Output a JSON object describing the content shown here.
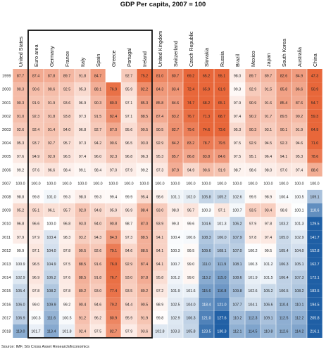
{
  "title": "GDP Per capita, 2007 = 100",
  "source": "Source: IMF, SG Cross Asset Research/Economics",
  "chart_data": {
    "type": "heatmap",
    "title": "GDP Per capita, 2007 = 100",
    "baseline_year": "2007",
    "highlighted_group": [
      "Euro area",
      "Germany",
      "France",
      "Italy",
      "Spain",
      "Greece",
      "Portugal",
      "Ireland"
    ],
    "color_scale": {
      "low": "#e8673a",
      "mid": "#ffffff",
      "high": "#1f5fa5",
      "mid_value": 100
    },
    "columns": [
      "United States",
      "Euro area",
      "Germany",
      "France",
      "Italy",
      "Spain",
      "Greece",
      "Portugal",
      "Ireland",
      "United Kingdom",
      "Switzerland",
      "Czech Republic",
      "Slovakia",
      "Russia",
      "Brazil",
      "Mexico",
      "Japan",
      "South Korea",
      "Australia",
      "China"
    ],
    "rows": [
      {
        "year": "1999",
        "values": [
          "87.7",
          "87.4",
          "87.8",
          "89.7",
          "91.8",
          "84.7",
          "",
          "92.7",
          "75.2",
          "81.0",
          "80.7",
          "69.2",
          "65.2",
          "55.1",
          "98.0",
          "89.7",
          "89.7",
          "82.6",
          "84.9",
          "47.3"
        ]
      },
      {
        "year": "2000",
        "values": [
          "90.3",
          "90.6",
          "90.6",
          "92.5",
          "95.3",
          "88.1",
          "76.9",
          "95.9",
          "82.2",
          "84.3",
          "83.4",
          "72.4",
          "65.9",
          "61.9",
          "99.3",
          "92.9",
          "91.5",
          "85.8",
          "86.6",
          "50.9"
        ]
      },
      {
        "year": "2001",
        "values": [
          "90.3",
          "91.9",
          "91.9",
          "93.6",
          "96.9",
          "90.3",
          "80.0",
          "97.1",
          "85.3",
          "85.8",
          "84.6",
          "74.7",
          "68.2",
          "65.1",
          "97.9",
          "90.9",
          "91.6",
          "85.4",
          "87.6",
          "54.7"
        ]
      },
      {
        "year": "2002",
        "values": [
          "91.0",
          "92.3",
          "91.8",
          "93.8",
          "97.3",
          "91.5",
          "82.4",
          "97.1",
          "88.5",
          "87.4",
          "83.2",
          "76.7",
          "71.3",
          "68.7",
          "97.4",
          "90.2",
          "91.7",
          "89.5",
          "90.2",
          "59.3"
        ]
      },
      {
        "year": "2003",
        "values": [
          "92.6",
          "92.4",
          "91.4",
          "94.0",
          "96.8",
          "92.7",
          "87.0",
          "95.6",
          "90.5",
          "90.5",
          "82.7",
          "79.6",
          "74.6",
          "73.6",
          "95.3",
          "90.3",
          "93.1",
          "90.1",
          "91.9",
          "64.9"
        ]
      },
      {
        "year": "2004",
        "values": [
          "95.3",
          "93.7",
          "92.7",
          "95.7",
          "97.3",
          "94.2",
          "90.6",
          "96.5",
          "93.0",
          "92.9",
          "84.2",
          "83.2",
          "78.7",
          "79.5",
          "97.5",
          "92.9",
          "94.5",
          "92.3",
          "94.6",
          "71.0"
        ]
      },
      {
        "year": "2005",
        "values": [
          "97.6",
          "94.9",
          "92.9",
          "96.5",
          "97.4",
          "96.0",
          "92.3",
          "96.8",
          "96.3",
          "95.3",
          "85.7",
          "86.8",
          "83.8",
          "84.6",
          "97.5",
          "95.1",
          "96.4",
          "94.1",
          "95.3",
          "78.6"
        ]
      },
      {
        "year": "2006",
        "values": [
          "99.2",
          "97.6",
          "96.6",
          "98.4",
          "99.1",
          "98.4",
          "97.0",
          "97.9",
          "99.2",
          "97.3",
          "87.9",
          "94.9",
          "90.6",
          "91.9",
          "98.7",
          "98.6",
          "98.0",
          "97.0",
          "97.4",
          "88.0"
        ]
      },
      {
        "year": "2007",
        "values": [
          "100.0",
          "100.0",
          "100.0",
          "100.0",
          "100.0",
          "100.0",
          "100.0",
          "100.0",
          "100.0",
          "100.0",
          "100.0",
          "100.0",
          "100.0",
          "100.0",
          "100.0",
          "100.0",
          "100.0",
          "100.0",
          "100.0",
          "100.0"
        ]
      },
      {
        "year": "2008",
        "values": [
          "98.8",
          "99.8",
          "101.0",
          "99.3",
          "98.0",
          "99.3",
          "99.4",
          "99.9",
          "95.4",
          "98.6",
          "101.1",
          "102.0",
          "105.8",
          "105.2",
          "102.6",
          "99.5",
          "98.9",
          "100.4",
          "100.5",
          "109.1"
        ]
      },
      {
        "year": "2009",
        "values": [
          "95.2",
          "95.1",
          "96.1",
          "95.7",
          "92.0",
          "94.8",
          "95.9",
          "96.9",
          "88.4",
          "93.0",
          "98.0",
          "96.7",
          "100.3",
          "97.1",
          "100.7",
          "93.5",
          "93.4",
          "98.8",
          "100.1",
          "118.6"
        ]
      },
      {
        "year": "2010",
        "values": [
          "96.8",
          "96.6",
          "100.0",
          "96.8",
          "93.0",
          "94.0",
          "90.8",
          "98.7",
          "87.0",
          "93.9",
          "99.3",
          "99.6",
          "104.6",
          "101.3",
          "106.2",
          "97.9",
          "97.8",
          "103.2",
          "101.3",
          "129.5"
        ]
      },
      {
        "year": "2011",
        "values": [
          "97.9",
          "97.9",
          "103.4",
          "98.3",
          "93.2",
          "94.3",
          "84.3",
          "97.3",
          "88.5",
          "94.1",
          "100.4",
          "100.6",
          "108.3",
          "106.0",
          "107.9",
          "97.8",
          "97.4",
          "105.0",
          "102.9",
          "141.7"
        ]
      },
      {
        "year": "2012",
        "values": [
          "99.9",
          "97.1",
          "104.0",
          "97.8",
          "90.5",
          "92.6",
          "79.1",
          "94.6",
          "88.5",
          "94.1",
          "100.3",
          "99.5",
          "109.6",
          "108.1",
          "107.0",
          "100.2",
          "99.5",
          "105.4",
          "104.0",
          "152.8"
        ]
      },
      {
        "year": "2013",
        "values": [
          "100.9",
          "96.5",
          "104.9",
          "97.5",
          "88.5",
          "91.6",
          "76.0",
          "92.9",
          "87.4",
          "94.1",
          "100.7",
          "99.0",
          "111.0",
          "111.9",
          "108.1",
          "100.3",
          "101.2",
          "106.3",
          "105.1",
          "162.7"
        ]
      },
      {
        "year": "2014",
        "values": [
          "102.9",
          "96.9",
          "106.2",
          "97.6",
          "88.5",
          "91.8",
          "76.7",
          "93.0",
          "87.8",
          "95.8",
          "101.2",
          "99.0",
          "113.2",
          "115.0",
          "108.6",
          "101.9",
          "101.5",
          "106.4",
          "107.3",
          "173.1"
        ]
      },
      {
        "year": "2015",
        "values": [
          "105.4",
          "97.8",
          "108.2",
          "97.8",
          "89.2",
          "93.0",
          "77.4",
          "93.5",
          "89.2",
          "97.2",
          "101.9",
          "101.6",
          "115.6",
          "116.8",
          "109.8",
          "102.6",
          "105.2",
          "106.5",
          "108.2",
          "183.5"
        ]
      },
      {
        "year": "2016",
        "values": [
          "106.0",
          "99.0",
          "109.9",
          "99.2",
          "90.4",
          "94.6",
          "79.2",
          "94.4",
          "90.5",
          "98.9",
          "102.5",
          "104.0",
          "118.4",
          "121.0",
          "107.7",
          "104.1",
          "106.6",
          "110.4",
          "110.1",
          "194.5"
        ]
      },
      {
        "year": "2017",
        "values": [
          "106.9",
          "100.3",
          "111.6",
          "100.5",
          "91.2",
          "96.2",
          "80.9",
          "95.9",
          "91.9",
          "99.8",
          "102.9",
          "106.3",
          "121.0",
          "127.6",
          "110.2",
          "112.3",
          "109.1",
          "112.5",
          "112.2",
          "205.8"
        ]
      },
      {
        "year": "2018",
        "values": [
          "113.0",
          "101.7",
          "113.4",
          "101.8",
          "92.4",
          "97.5",
          "82.7",
          "97.9",
          "93.6",
          "102.8",
          "103.3",
          "105.8",
          "123.5",
          "130.3",
          "112.1",
          "114.5",
          "110.8",
          "112.6",
          "114.2",
          "216.1"
        ]
      }
    ]
  }
}
